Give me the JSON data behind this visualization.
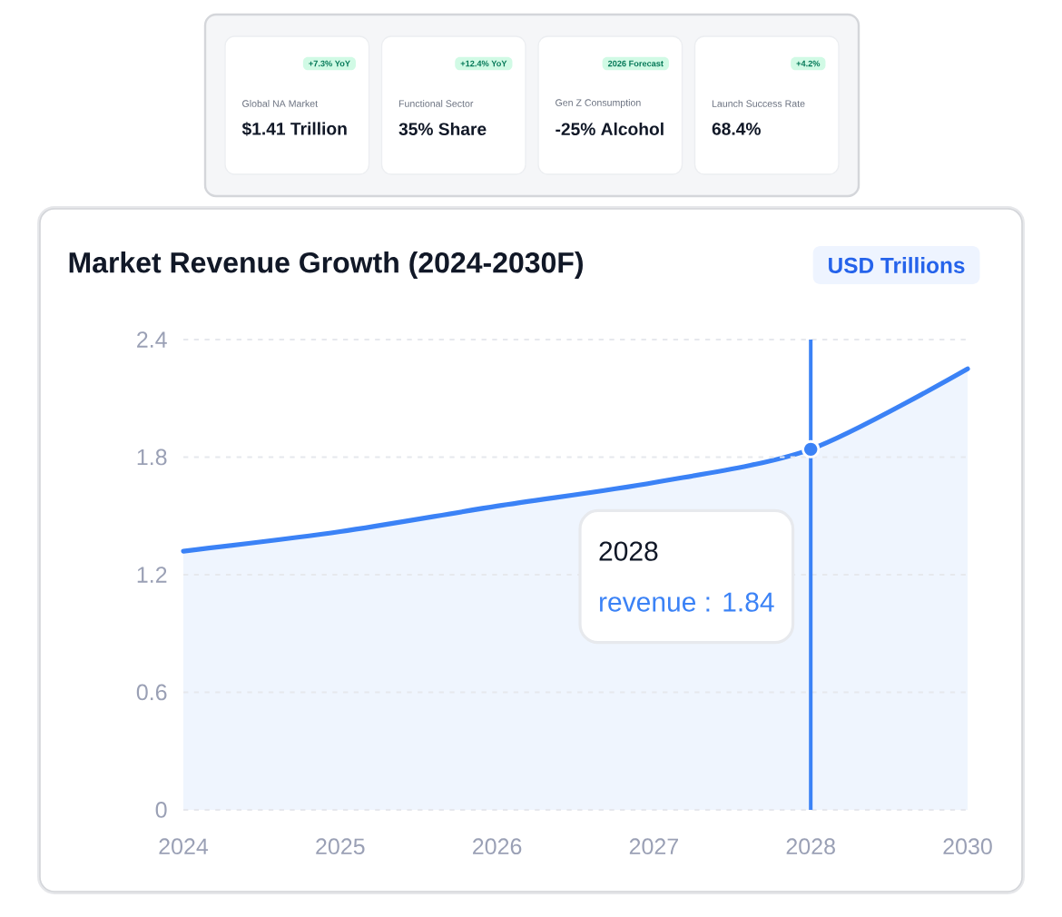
{
  "chart_data": [
    {
      "type": "other",
      "categories": [
        "Global NA Market",
        "Functional Sector",
        "Gen Z Consumption",
        "Launch Success Rate"
      ],
      "value_labels": [
        "$1.41 Trillion",
        "35% Share",
        "-25% Alcohol",
        "68.4%"
      ],
      "annotations": [
        "+7.3% YoY",
        "+12.4% YoY",
        "2026 Forecast",
        "+4.2%"
      ]
    },
    {
      "type": "area",
      "title": "Market Revenue Growth (2024-2030F)",
      "ylabel": "USD Trillions",
      "categories": [
        "2024",
        "2025",
        "2026",
        "2027",
        "2028",
        "2030"
      ],
      "values": [
        1.32,
        1.42,
        1.55,
        1.67,
        1.84,
        2.25
      ],
      "color": "#3b82f6",
      "ylim": [
        0,
        2.4
      ],
      "yticks": [
        0,
        0.6,
        1.2,
        1.8,
        2.4
      ],
      "grid": "y",
      "ref_lines": [
        {
          "axis": "x",
          "value": "2028",
          "color": "#3b82f6"
        }
      ],
      "annotations": [
        "2028",
        "revenue : 1.84"
      ]
    }
  ]
}
